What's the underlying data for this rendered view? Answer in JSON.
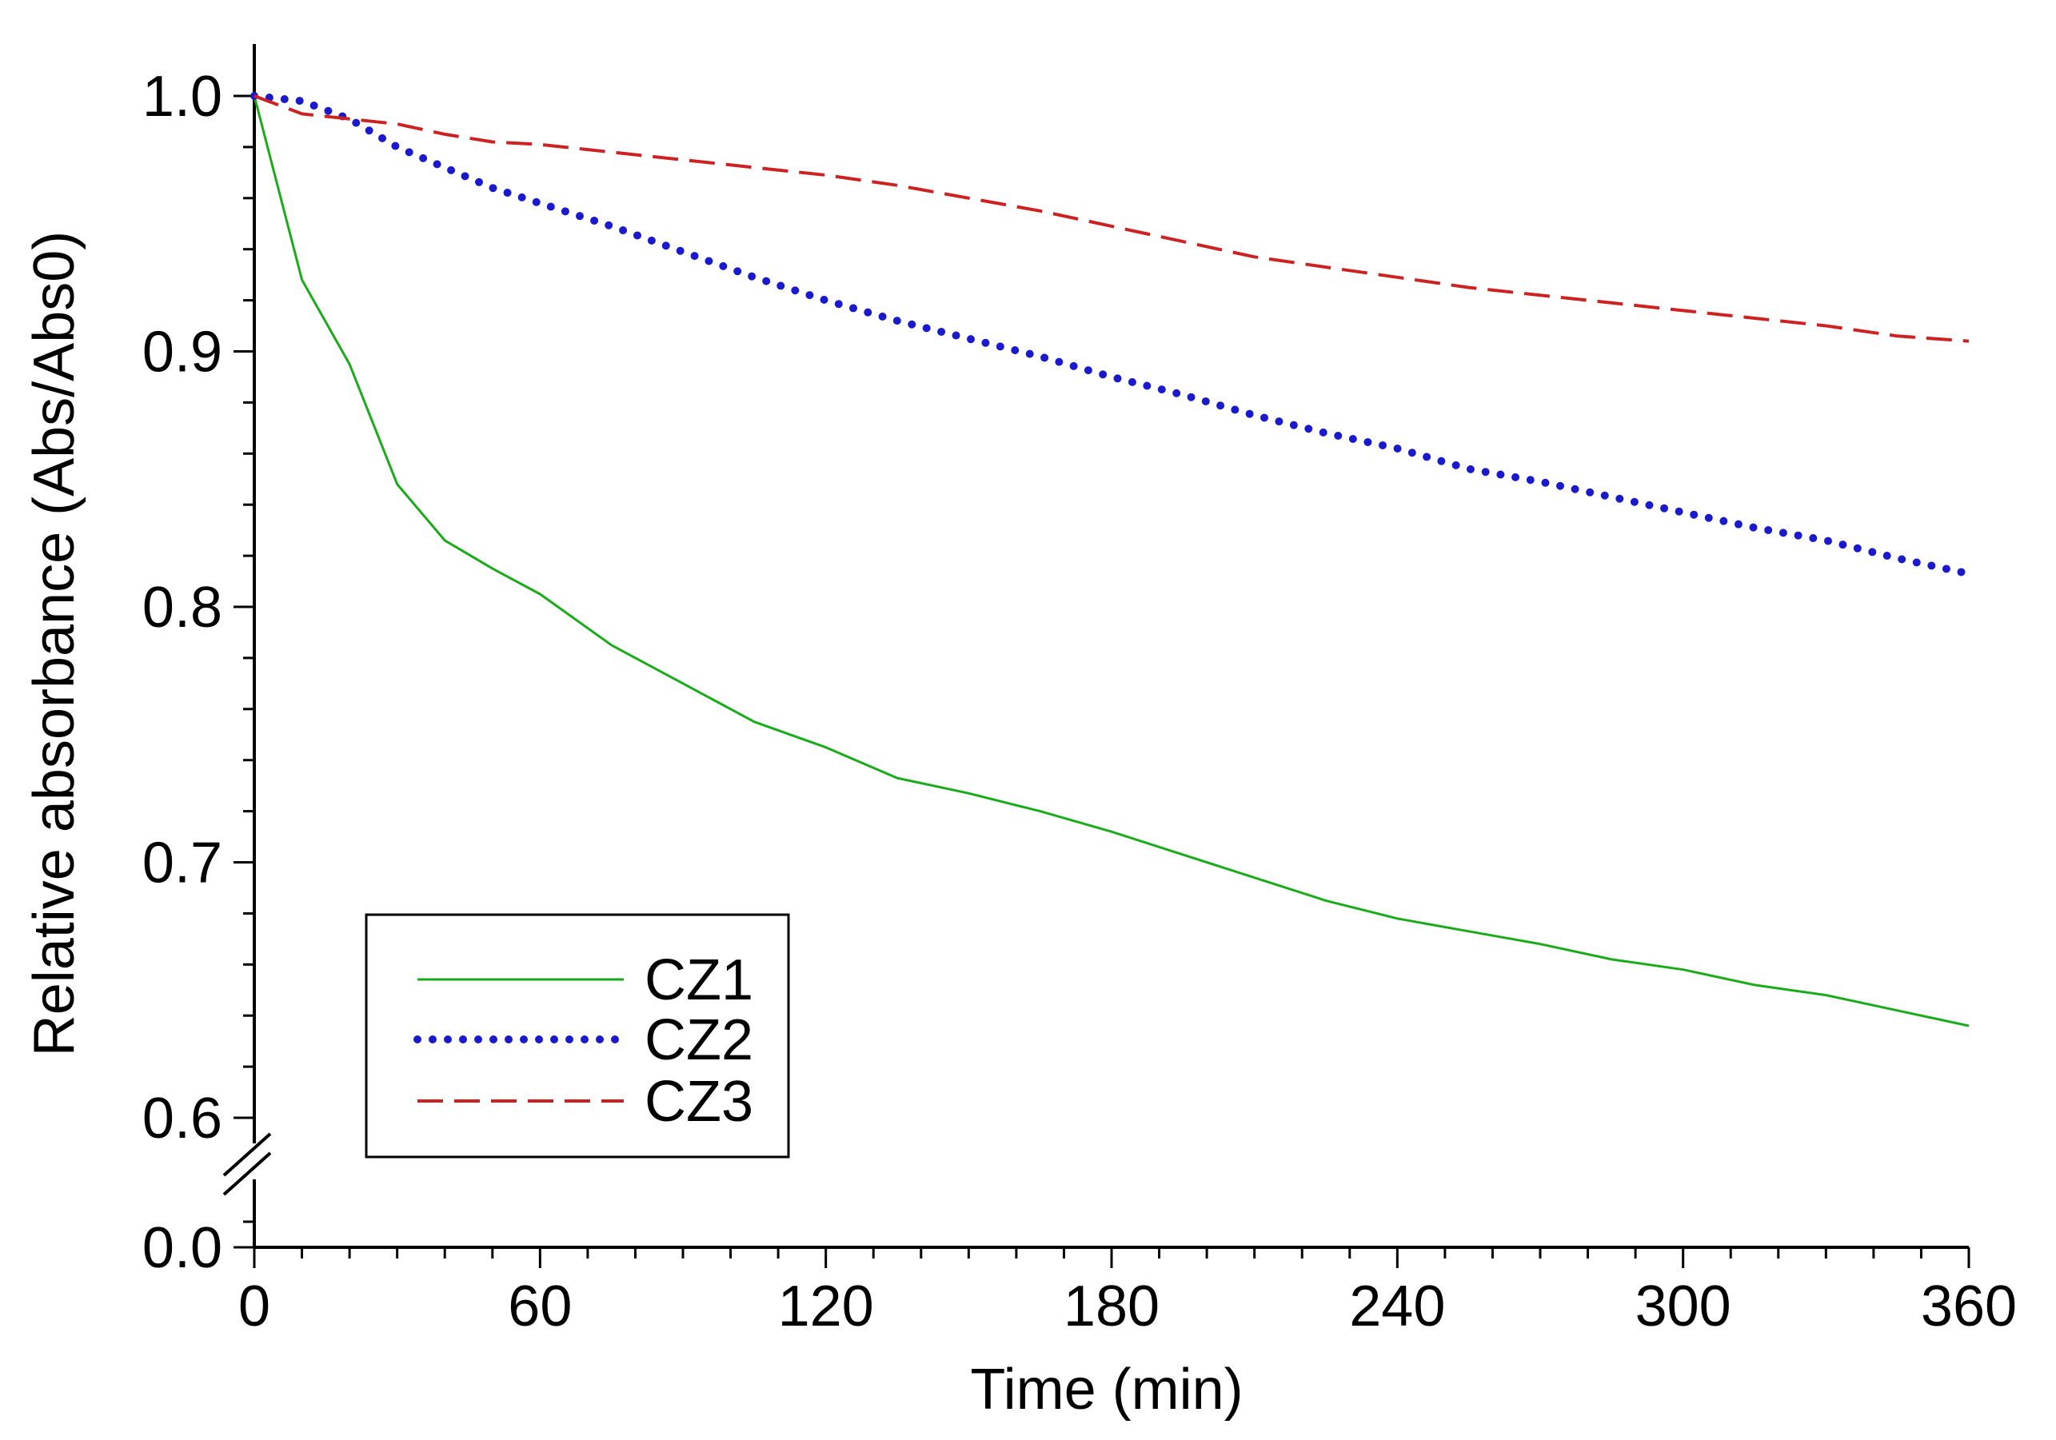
{
  "chart_data": {
    "type": "line",
    "title": "",
    "xlabel": "Time (min)",
    "ylabel": "Relative absorbance (Abs/Abs0)",
    "xlim": [
      0,
      360
    ],
    "ylim": [
      0.6,
      1.02
    ],
    "y_axis_break": {
      "lower_tick": 0.0,
      "break_between": [
        0.0,
        0.6
      ]
    },
    "x_ticks": [
      0,
      60,
      120,
      180,
      240,
      300,
      360
    ],
    "x_tick_labels": [
      "0",
      "60",
      "120",
      "180",
      "240",
      "300",
      "360"
    ],
    "y_ticks": [
      0.6,
      0.7,
      0.8,
      0.9,
      1.0
    ],
    "y_tick_labels": [
      "0.6",
      "0.7",
      "0.8",
      "0.9",
      "1.0"
    ],
    "y_lower_tick_label": "0.0",
    "grid": false,
    "legend_position": "bottom-left",
    "x": [
      0,
      10,
      20,
      30,
      40,
      50,
      60,
      75,
      90,
      105,
      120,
      135,
      150,
      165,
      180,
      195,
      210,
      225,
      240,
      255,
      270,
      285,
      300,
      315,
      330,
      345,
      360
    ],
    "series": [
      {
        "name": "CZ1",
        "style": "solid",
        "color": "#1aab1a",
        "values": [
          1.0,
          0.928,
          0.895,
          0.848,
          0.826,
          0.815,
          0.805,
          0.785,
          0.77,
          0.755,
          0.745,
          0.733,
          0.727,
          0.72,
          0.712,
          0.703,
          0.694,
          0.685,
          0.678,
          0.673,
          0.668,
          0.662,
          0.658,
          0.652,
          0.648,
          0.642,
          0.636
        ]
      },
      {
        "name": "CZ2",
        "style": "dotted",
        "color": "#1a1acc",
        "values": [
          1.0,
          0.998,
          0.991,
          0.98,
          0.972,
          0.964,
          0.958,
          0.949,
          0.939,
          0.929,
          0.92,
          0.912,
          0.905,
          0.898,
          0.89,
          0.883,
          0.875,
          0.868,
          0.862,
          0.854,
          0.849,
          0.843,
          0.837,
          0.831,
          0.826,
          0.819,
          0.813
        ]
      },
      {
        "name": "CZ3",
        "style": "dashed",
        "color": "#cc2222",
        "values": [
          1.0,
          0.993,
          0.991,
          0.989,
          0.985,
          0.982,
          0.981,
          0.978,
          0.975,
          0.972,
          0.969,
          0.965,
          0.96,
          0.955,
          0.949,
          0.943,
          0.937,
          0.933,
          0.929,
          0.925,
          0.922,
          0.919,
          0.916,
          0.913,
          0.91,
          0.906,
          0.904
        ]
      }
    ]
  }
}
